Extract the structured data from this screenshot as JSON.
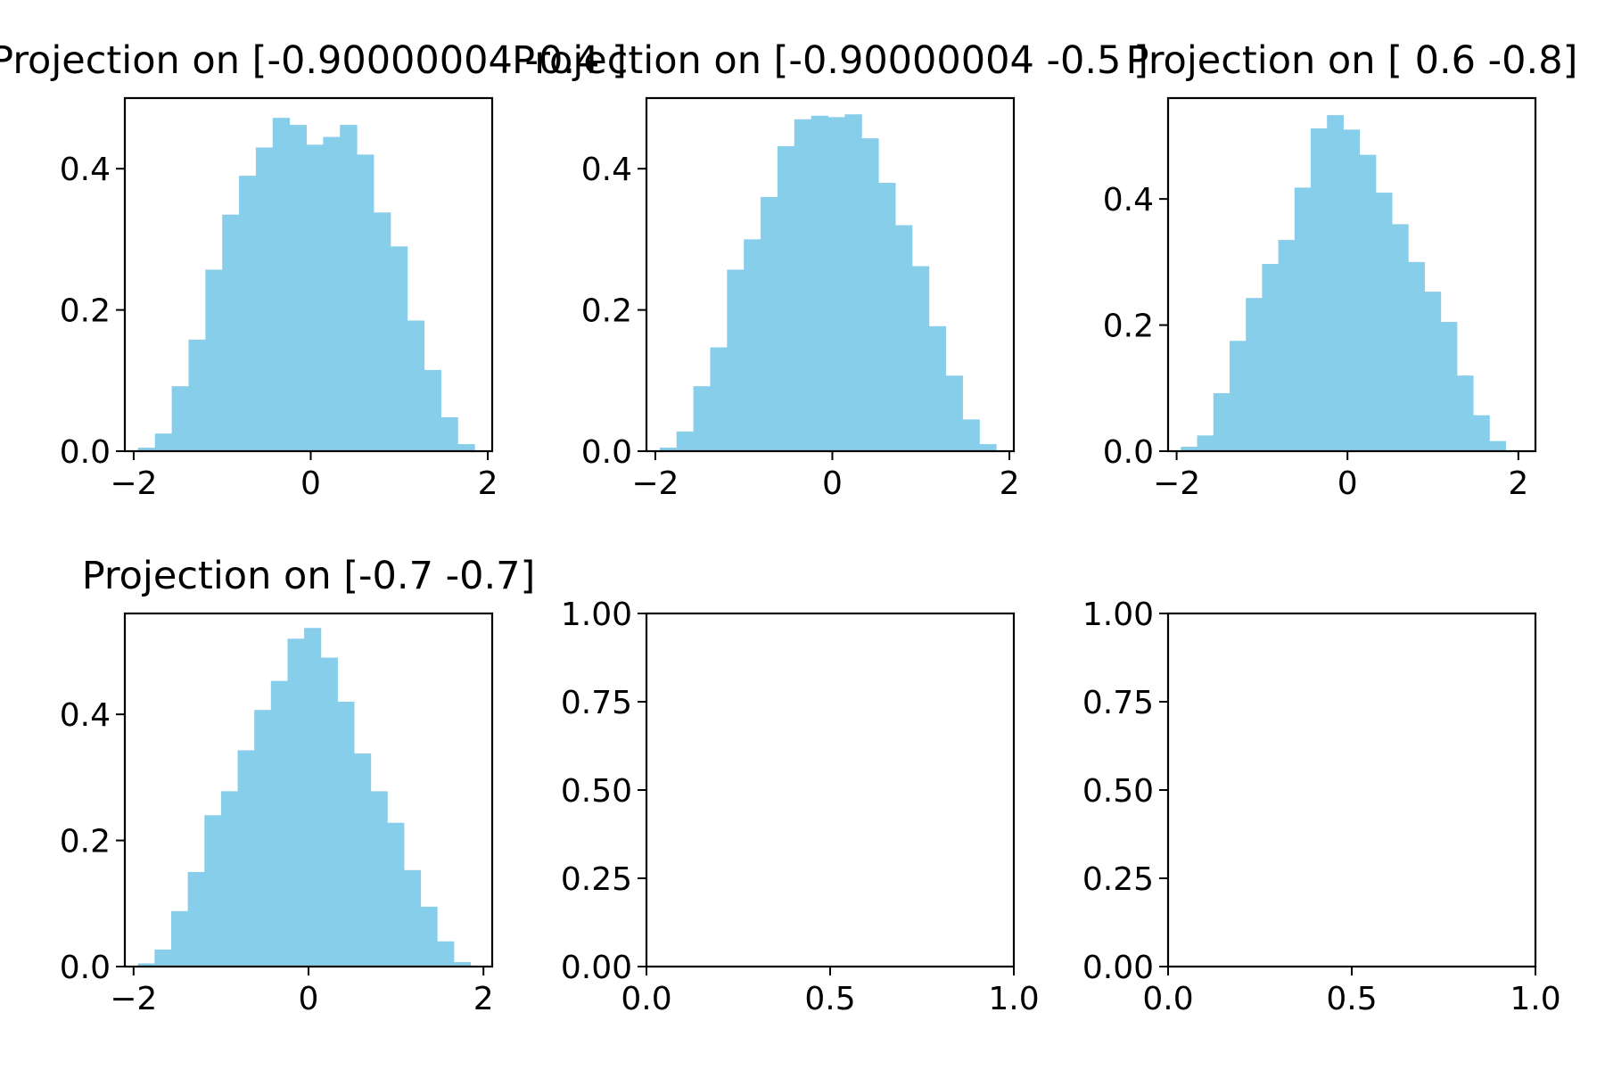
{
  "chart_data": [
    {
      "type": "bar",
      "title": "Projection on [-0.90000004 -0.4 ]",
      "bin_edges": [
        -1.95,
        -1.76,
        -1.57,
        -1.38,
        -1.19,
        -1.0,
        -0.81,
        -0.62,
        -0.43,
        -0.24,
        -0.05,
        0.14,
        0.33,
        0.52,
        0.71,
        0.9,
        1.09,
        1.28,
        1.47,
        1.66,
        1.85
      ],
      "values": [
        0.005,
        0.025,
        0.092,
        0.158,
        0.257,
        0.335,
        0.39,
        0.43,
        0.472,
        0.462,
        0.434,
        0.445,
        0.462,
        0.42,
        0.338,
        0.29,
        0.185,
        0.115,
        0.048,
        0.01
      ],
      "color": "#87ceeb",
      "xlim": [
        -2.1,
        2.05
      ],
      "ylim": [
        0,
        0.5
      ],
      "xticks": [
        -2,
        0,
        2
      ],
      "xtick_labels": [
        "−2",
        "0",
        "2"
      ],
      "yticks": [
        0.0,
        0.2,
        0.4
      ],
      "ytick_labels": [
        "0.0",
        "0.2",
        "0.4"
      ]
    },
    {
      "type": "bar",
      "title": "Projection on [-0.90000004 -0.5 ]",
      "bin_edges": [
        -1.95,
        -1.76,
        -1.57,
        -1.38,
        -1.19,
        -1.0,
        -0.81,
        -0.62,
        -0.43,
        -0.24,
        -0.05,
        0.14,
        0.33,
        0.52,
        0.71,
        0.9,
        1.09,
        1.28,
        1.47,
        1.66,
        1.85
      ],
      "values": [
        0.005,
        0.028,
        0.092,
        0.147,
        0.257,
        0.3,
        0.36,
        0.432,
        0.47,
        0.475,
        0.473,
        0.477,
        0.443,
        0.38,
        0.32,
        0.262,
        0.177,
        0.107,
        0.045,
        0.01
      ],
      "color": "#87ceeb",
      "xlim": [
        -2.1,
        2.05
      ],
      "ylim": [
        0,
        0.5
      ],
      "xticks": [
        -2,
        0,
        2
      ],
      "xtick_labels": [
        "−2",
        "0",
        "2"
      ],
      "yticks": [
        0.0,
        0.2,
        0.4
      ],
      "ytick_labels": [
        "0.0",
        "0.2",
        "0.4"
      ]
    },
    {
      "type": "bar",
      "title": "Projection on [ 0.6 -0.8]",
      "bin_edges": [
        -1.95,
        -1.76,
        -1.57,
        -1.38,
        -1.19,
        -1.0,
        -0.81,
        -0.62,
        -0.43,
        -0.24,
        -0.05,
        0.14,
        0.33,
        0.52,
        0.71,
        0.9,
        1.09,
        1.28,
        1.47,
        1.66,
        1.85
      ],
      "values": [
        0.007,
        0.025,
        0.092,
        0.175,
        0.243,
        0.297,
        0.335,
        0.418,
        0.512,
        0.533,
        0.51,
        0.47,
        0.41,
        0.36,
        0.3,
        0.253,
        0.205,
        0.12,
        0.057,
        0.016
      ],
      "color": "#87ceeb",
      "xlim": [
        -2.1,
        2.2
      ],
      "ylim": [
        0,
        0.56
      ],
      "xticks": [
        -2,
        0,
        2
      ],
      "xtick_labels": [
        "−2",
        "0",
        "2"
      ],
      "yticks": [
        0.0,
        0.2,
        0.4
      ],
      "ytick_labels": [
        "0.0",
        "0.2",
        "0.4"
      ]
    },
    {
      "type": "bar",
      "title": "Projection on [-0.7 -0.7]",
      "bin_edges": [
        -1.95,
        -1.76,
        -1.57,
        -1.38,
        -1.19,
        -1.0,
        -0.81,
        -0.62,
        -0.43,
        -0.24,
        -0.05,
        0.14,
        0.33,
        0.52,
        0.71,
        0.9,
        1.09,
        1.28,
        1.47,
        1.66,
        1.85
      ],
      "values": [
        0.005,
        0.027,
        0.088,
        0.15,
        0.24,
        0.278,
        0.343,
        0.407,
        0.453,
        0.52,
        0.537,
        0.49,
        0.42,
        0.338,
        0.278,
        0.228,
        0.153,
        0.095,
        0.04,
        0.007
      ],
      "color": "#87ceeb",
      "xlim": [
        -2.1,
        2.1
      ],
      "ylim": [
        0,
        0.56
      ],
      "xticks": [
        -2,
        0,
        2
      ],
      "xtick_labels": [
        "−2",
        "0",
        "2"
      ],
      "yticks": [
        0.0,
        0.2,
        0.4
      ],
      "ytick_labels": [
        "0.0",
        "0.2",
        "0.4"
      ]
    },
    {
      "type": "bar",
      "title": "",
      "values": [],
      "xlim": [
        0,
        1
      ],
      "ylim": [
        0,
        1
      ],
      "xticks": [
        0.0,
        0.5,
        1.0
      ],
      "xtick_labels": [
        "0.0",
        "0.5",
        "1.0"
      ],
      "yticks": [
        0.0,
        0.25,
        0.5,
        0.75,
        1.0
      ],
      "ytick_labels": [
        "0.00",
        "0.25",
        "0.50",
        "0.75",
        "1.00"
      ]
    },
    {
      "type": "bar",
      "title": "",
      "values": [],
      "xlim": [
        0,
        1
      ],
      "ylim": [
        0,
        1
      ],
      "xticks": [
        0.0,
        0.5,
        1.0
      ],
      "xtick_labels": [
        "0.0",
        "0.5",
        "1.0"
      ],
      "yticks": [
        0.0,
        0.25,
        0.5,
        0.75,
        1.0
      ],
      "ytick_labels": [
        "0.00",
        "0.25",
        "0.50",
        "0.75",
        "1.00"
      ]
    }
  ]
}
